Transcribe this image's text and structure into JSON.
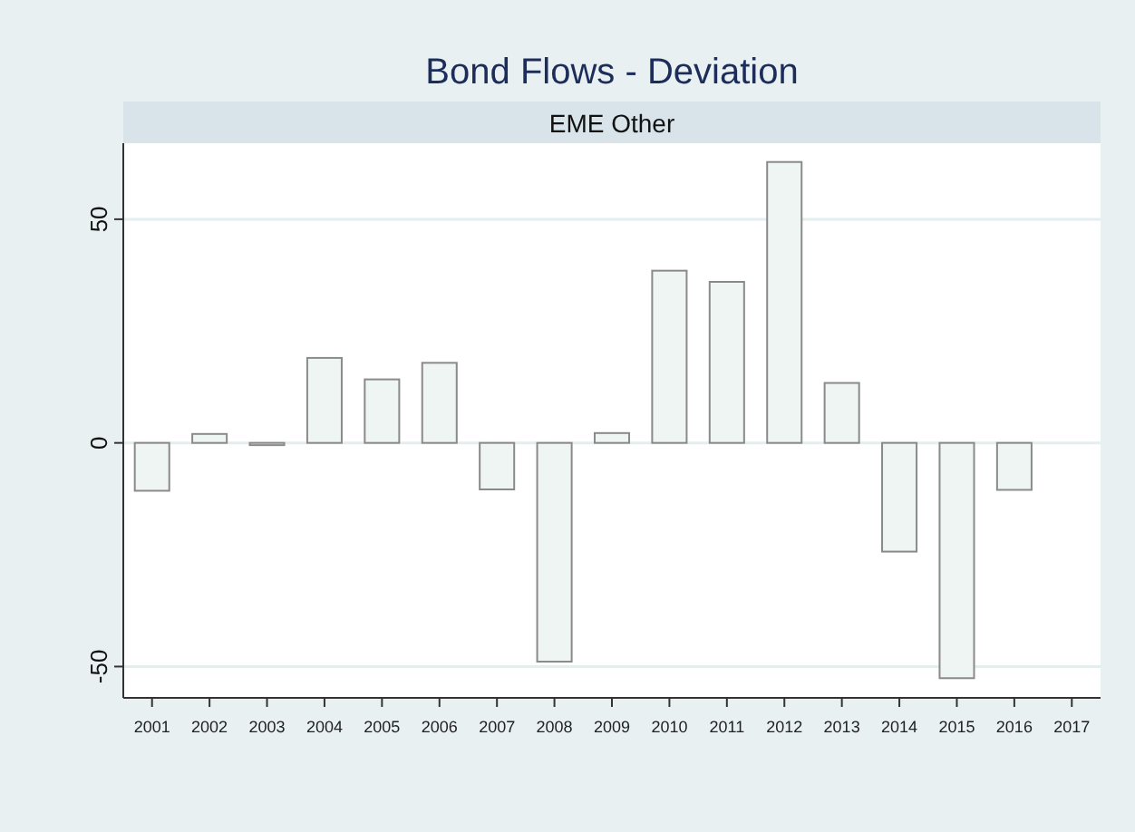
{
  "chart_data": {
    "type": "bar",
    "title": "Bond Flows - Deviation",
    "subtitle": "EME Other",
    "categories": [
      "2001",
      "2002",
      "2003",
      "2004",
      "2005",
      "2006",
      "2007",
      "2008",
      "2009",
      "2010",
      "2011",
      "2012",
      "2013",
      "2014",
      "2015",
      "2016",
      "2017"
    ],
    "values": [
      -10.7,
      2.0,
      -0.5,
      19.0,
      14.2,
      17.9,
      -10.4,
      -48.9,
      2.2,
      38.5,
      36.0,
      62.8,
      13.4,
      -24.3,
      -52.6,
      -10.5,
      null
    ],
    "color": "#eef5f3",
    "ylim": [
      -57,
      67
    ],
    "yticks": [
      -50,
      0,
      50
    ],
    "grid": "y"
  }
}
